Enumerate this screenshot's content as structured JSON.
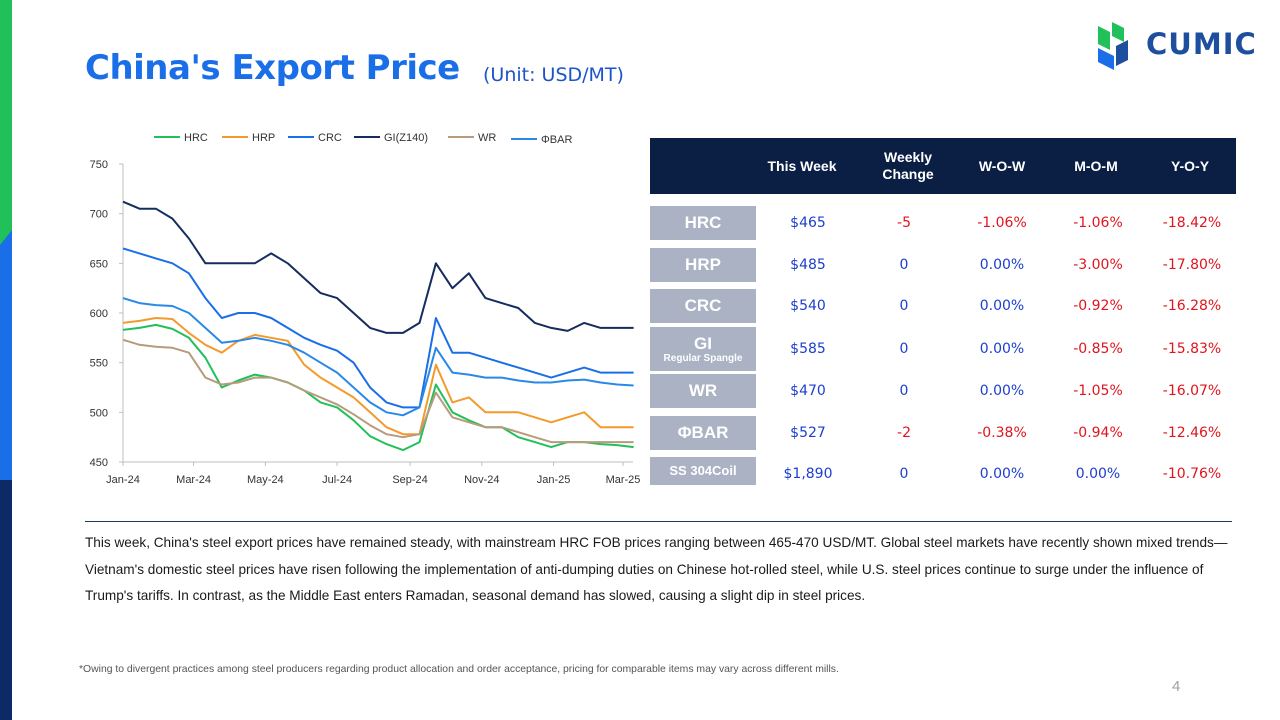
{
  "header": {
    "title": "China's Export Price",
    "unit": "(Unit: USD/MT)"
  },
  "logo": {
    "text": "CUMIC"
  },
  "colors": {
    "accent_blue": "#1a6fe8",
    "table_header": "#0b1f45",
    "row_label_bg": "#aab2c4",
    "positive_text": "#1c3fcc",
    "negative_text": "#e0141e"
  },
  "chart_data": {
    "type": "line",
    "x": [
      "2024-01-01",
      "2024-01-15",
      "2024-01-29",
      "2024-02-12",
      "2024-02-26",
      "2024-03-11",
      "2024-03-25",
      "2024-04-08",
      "2024-04-22",
      "2024-05-06",
      "2024-05-20",
      "2024-06-03",
      "2024-06-17",
      "2024-07-01",
      "2024-07-15",
      "2024-07-29",
      "2024-08-12",
      "2024-08-26",
      "2024-09-09",
      "2024-09-23",
      "2024-10-07",
      "2024-10-21",
      "2024-11-04",
      "2024-11-18",
      "2024-12-02",
      "2024-12-16",
      "2024-12-30",
      "2025-01-13",
      "2025-01-27",
      "2025-02-10",
      "2025-02-24",
      "2025-03-10"
    ],
    "x_tick_labels": [
      "Jan-24",
      "Mar-24",
      "May-24",
      "Jul-24",
      "Sep-24",
      "Nov-24",
      "Jan-25",
      "Mar-25"
    ],
    "ylim": [
      450,
      750
    ],
    "y_ticks": [
      450,
      500,
      550,
      600,
      650,
      700,
      750
    ],
    "legend_position": "top",
    "series": [
      {
        "name": "HRC",
        "color": "#22c05a",
        "values": [
          583,
          585,
          588,
          584,
          575,
          555,
          525,
          532,
          538,
          535,
          530,
          522,
          510,
          505,
          492,
          476,
          468,
          462,
          470,
          528,
          500,
          492,
          485,
          485,
          475,
          470,
          465,
          470,
          470,
          468,
          467,
          465
        ]
      },
      {
        "name": "HRP",
        "color": "#f39a2c",
        "values": [
          590,
          592,
          595,
          594,
          580,
          568,
          560,
          572,
          578,
          575,
          572,
          548,
          535,
          525,
          515,
          500,
          485,
          478,
          478,
          548,
          510,
          515,
          500,
          500,
          500,
          495,
          490,
          495,
          500,
          485,
          485,
          485
        ]
      },
      {
        "name": "CRC",
        "color": "#1a6fe8",
        "values": [
          665,
          660,
          655,
          650,
          640,
          615,
          595,
          600,
          600,
          595,
          585,
          575,
          568,
          562,
          550,
          525,
          510,
          505,
          505,
          595,
          560,
          560,
          555,
          550,
          545,
          540,
          535,
          540,
          545,
          540,
          540,
          540
        ]
      },
      {
        "name": "GI(Z140)",
        "color": "#152c5e",
        "values": [
          712,
          705,
          705,
          695,
          675,
          650,
          650,
          650,
          650,
          660,
          650,
          635,
          620,
          615,
          600,
          585,
          580,
          580,
          590,
          650,
          625,
          640,
          615,
          610,
          605,
          590,
          585,
          582,
          590,
          585,
          585,
          585
        ]
      },
      {
        "name": "WR",
        "color": "#b79b7c",
        "values": [
          573,
          568,
          566,
          565,
          560,
          535,
          528,
          530,
          535,
          535,
          530,
          522,
          515,
          508,
          498,
          487,
          478,
          475,
          478,
          520,
          495,
          490,
          485,
          485,
          480,
          475,
          470,
          470,
          470,
          470,
          470,
          470
        ]
      },
      {
        "name": "ΦBAR",
        "color": "#2a88e8",
        "values": [
          615,
          610,
          608,
          607,
          600,
          585,
          570,
          572,
          575,
          572,
          568,
          560,
          550,
          540,
          525,
          510,
          500,
          497,
          505,
          565,
          540,
          538,
          535,
          535,
          532,
          530,
          530,
          532,
          533,
          530,
          528,
          527
        ]
      }
    ]
  },
  "table": {
    "headers": [
      "",
      "This Week",
      "Weekly Change",
      "W-O-W",
      "M-O-M",
      "Y-O-Y"
    ],
    "rows": [
      {
        "product": "HRC",
        "sub": "",
        "this_week": "$465",
        "weekly_change": "-5",
        "wow": "-1.06%",
        "mom": "-1.06%",
        "yoy": "-18.42%"
      },
      {
        "product": "HRP",
        "sub": "",
        "this_week": "$485",
        "weekly_change": "0",
        "wow": "0.00%",
        "mom": "-3.00%",
        "yoy": "-17.80%"
      },
      {
        "product": "CRC",
        "sub": "",
        "this_week": "$540",
        "weekly_change": "0",
        "wow": "0.00%",
        "mom": "-0.92%",
        "yoy": "-16.28%"
      },
      {
        "product": "GI",
        "sub": "Regular Spangle",
        "this_week": "$585",
        "weekly_change": "0",
        "wow": "0.00%",
        "mom": "-0.85%",
        "yoy": "-15.83%"
      },
      {
        "product": "WR",
        "sub": "",
        "this_week": "$470",
        "weekly_change": "0",
        "wow": "0.00%",
        "mom": "-1.05%",
        "yoy": "-16.07%"
      },
      {
        "product": "ΦBAR",
        "sub": "",
        "this_week": "$527",
        "weekly_change": "-2",
        "wow": "-0.38%",
        "mom": "-0.94%",
        "yoy": "-12.46%"
      },
      {
        "product": "SS 304Coil",
        "sub": "",
        "this_week": "$1,890",
        "weekly_change": "0",
        "wow": "0.00%",
        "mom": "0.00%",
        "yoy": "-10.76%"
      }
    ]
  },
  "summary": "This week, China's steel export prices have remained steady, with mainstream HRC FOB prices ranging between 465-470 USD/MT. Global steel markets have recently shown mixed trends—Vietnam's domestic steel prices have risen following the implementation of anti-dumping duties on Chinese hot-rolled steel, while U.S. steel prices continue to surge under the influence of Trump's tariffs. In contrast, as the Middle East enters Ramadan, seasonal demand has slowed, causing a slight dip in steel prices.",
  "footnote": "*Owing to divergent practices among steel producers regarding product allocation and order acceptance, pricing for comparable items may vary across different mills.",
  "page_number": "4"
}
